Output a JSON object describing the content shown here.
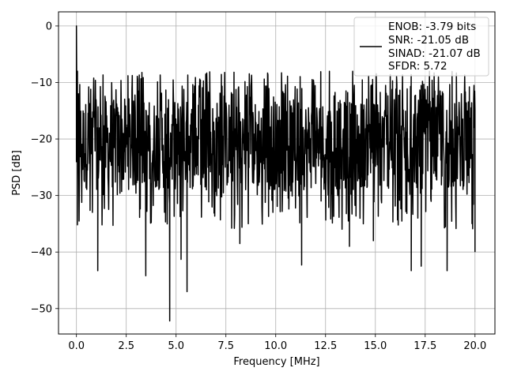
{
  "chart_data": {
    "type": "line",
    "title": "",
    "xlabel": "Frequency [MHz]",
    "ylabel": "PSD [dB]",
    "xlim": [
      -0.9,
      21.0
    ],
    "ylim": [
      -54.5,
      2.5
    ],
    "xticks": [
      0.0,
      2.5,
      5.0,
      7.5,
      10.0,
      12.5,
      15.0,
      17.5,
      20.0
    ],
    "xtick_labels": [
      "0.0",
      "2.5",
      "5.0",
      "7.5",
      "10.0",
      "12.5",
      "15.0",
      "17.5",
      "20.0"
    ],
    "yticks": [
      0,
      -10,
      -20,
      -30,
      -40,
      -50
    ],
    "ytick_labels": [
      "0",
      "−10",
      "−20",
      "−30",
      "−40",
      "−50"
    ],
    "grid": true,
    "legend_position": "top-right",
    "line_color": "#000000",
    "series": [
      {
        "name": "ENOB: -3.79 bits\nSNR: -21.05 dB\nSINAD: -21.07 dB\nSFDR: 5.72",
        "legend_lines": [
          "ENOB: -3.79 bits",
          "SNR: -21.05 dB",
          "SINAD: -21.07 dB",
          "SFDR: 5.72"
        ],
        "x_range": [
          0.0,
          20.0
        ],
        "num_points": 1200,
        "floor_band_db": [
          -29,
          -13
        ],
        "peak_level_db": -8,
        "x": [
          0.0,
          0.03,
          0.05,
          0.08,
          0.1,
          0.15,
          0.2,
          1.07,
          3.48,
          4.68,
          5.25,
          5.55,
          8.2,
          11.3,
          13.7,
          14.9,
          16.8,
          17.3,
          18.6,
          20.0
        ],
        "y": [
          0.0,
          -17.0,
          -8.0,
          -25.0,
          -12.0,
          -24.5,
          -16.0,
          -43.3,
          -44.2,
          -52.2,
          -41.3,
          -47.0,
          -38.5,
          -42.3,
          -39.0,
          -38.0,
          -43.3,
          -42.5,
          -43.3,
          -40.0
        ]
      }
    ]
  }
}
